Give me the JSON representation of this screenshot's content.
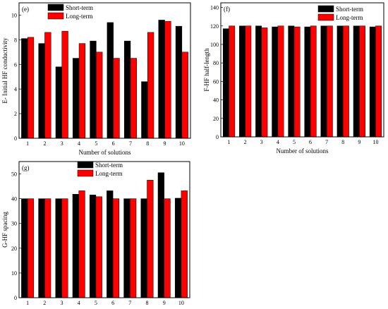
{
  "colors": {
    "short_term": "#000000",
    "long_term": "#ff0000"
  },
  "chart_data": [
    {
      "id": "e",
      "type": "bar",
      "panel_label": "(e)",
      "xlabel": "Number of solutions",
      "ylabel": "E- Initial HF conductivity",
      "categories": [
        "1",
        "2",
        "3",
        "4",
        "5",
        "6",
        "7",
        "8",
        "9",
        "10"
      ],
      "ylim": [
        0,
        11
      ],
      "yticks": [
        "0",
        "2",
        "4",
        "6",
        "8",
        "10"
      ],
      "ytick_values": [
        0,
        2,
        4,
        6,
        8,
        10
      ],
      "legend_position": "top-left",
      "series": [
        {
          "name": "Short-term",
          "color": "#000000",
          "values": [
            8.1,
            7.7,
            5.8,
            6.5,
            7.9,
            9.4,
            7.9,
            4.6,
            9.6,
            9.1
          ]
        },
        {
          "name": "Long-term",
          "color": "#ff0000",
          "values": [
            8.2,
            8.6,
            8.7,
            7.7,
            7.0,
            6.5,
            6.5,
            8.6,
            9.5,
            7.0
          ]
        }
      ]
    },
    {
      "id": "f",
      "type": "bar",
      "panel_label": "(f)",
      "xlabel": "Number of solutions",
      "ylabel": "F-HF half-length",
      "categories": [
        "1",
        "2",
        "3",
        "4",
        "5",
        "6",
        "7",
        "8",
        "9",
        "10"
      ],
      "ylim": [
        0,
        145
      ],
      "yticks": [
        "0",
        "20",
        "40",
        "60",
        "80",
        "100",
        "120",
        "140"
      ],
      "ytick_values": [
        0,
        20,
        40,
        60,
        80,
        100,
        120,
        140
      ],
      "legend_position": "top-right",
      "series": [
        {
          "name": "Short-term",
          "color": "#000000",
          "values": [
            117,
            120,
            120,
            119,
            120,
            119,
            120,
            120,
            120,
            119
          ]
        },
        {
          "name": "Long-term",
          "color": "#ff0000",
          "values": [
            120,
            120,
            118,
            120,
            119,
            120,
            120,
            120,
            120,
            120
          ]
        }
      ]
    },
    {
      "id": "g",
      "type": "bar",
      "panel_label": "(g)",
      "xlabel": "Number of solutions",
      "ylabel": "G-HF spacing",
      "categories": [
        "1",
        "2",
        "3",
        "4",
        "5",
        "6",
        "7",
        "8",
        "9",
        "10"
      ],
      "ylim": [
        0,
        55
      ],
      "yticks": [
        "0",
        "10",
        "20",
        "30",
        "40",
        "50"
      ],
      "ytick_values": [
        0,
        10,
        20,
        30,
        40,
        50
      ],
      "legend_position": "top-center",
      "series": [
        {
          "name": "Short-term",
          "color": "#000000",
          "values": [
            40,
            40,
            40,
            41.8,
            41.5,
            43.2,
            40,
            40,
            50.5,
            40.2
          ]
        },
        {
          "name": "Long-term",
          "color": "#ff0000",
          "values": [
            40,
            40,
            40,
            43.2,
            40.8,
            40,
            40,
            47.5,
            40,
            43.2
          ]
        }
      ]
    }
  ]
}
